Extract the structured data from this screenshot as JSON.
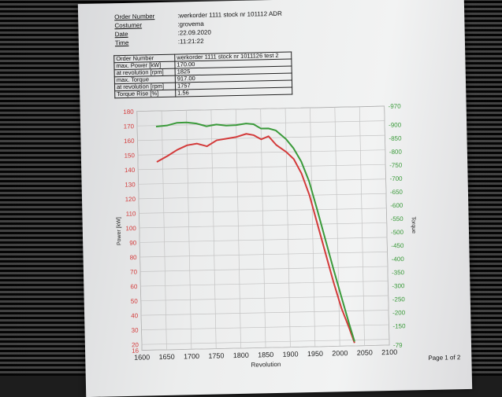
{
  "header": {
    "rows": [
      {
        "label": "Order Number",
        "value": ":werkorder 1111 stock nr 101112  ADR"
      },
      {
        "label": "Costumer",
        "value": ":grovema"
      },
      {
        "label": "Date",
        "value": ":22.09.2020"
      },
      {
        "label": "Time",
        "value": ":11:21:22"
      }
    ]
  },
  "results_table": [
    {
      "label": "Order Number",
      "value": "werkorder 1111 stock nr 1011126  test 2"
    },
    {
      "label": "max. Power [kW]",
      "value": "170.00"
    },
    {
      "label": "at revolution [rpm]",
      "value": "1825"
    },
    {
      "label": "max. Torque",
      "value": "917.00"
    },
    {
      "label": "at revolution [rpm]",
      "value": "1757"
    },
    {
      "label": "Torque Rise [%]",
      "value": "1.56"
    }
  ],
  "footer": "Page 1 of 2",
  "chart_data": {
    "type": "line",
    "xlabel": "Revolution",
    "ylabel_left": "Power [kW]",
    "ylabel_right": "Torque",
    "xlim": [
      1600,
      2100
    ],
    "ylim_left": [
      16,
      180
    ],
    "ylim_right": [
      79,
      970
    ],
    "x_ticks": [
      1600,
      1650,
      1700,
      1750,
      1800,
      1850,
      1900,
      1950,
      2000,
      2050,
      2100
    ],
    "y_ticks_left": [
      16,
      20,
      30,
      40,
      50,
      60,
      70,
      80,
      90,
      100,
      110,
      120,
      130,
      140,
      150,
      160,
      170,
      180
    ],
    "y_ticks_right": [
      79,
      150,
      200,
      250,
      300,
      350,
      400,
      450,
      500,
      550,
      600,
      650,
      700,
      750,
      800,
      850,
      900,
      970
    ],
    "y_tick_labels_right": [
      "-79",
      "-150",
      "-200",
      "-250",
      "-300",
      "-350",
      "-400",
      "-450",
      "-500",
      "-550",
      "-600",
      "-650",
      "-700",
      "-750",
      "-800",
      "-850",
      "-900",
      "-970"
    ],
    "grid": true,
    "colors": {
      "power": "#d33a3a",
      "torque": "#3a9a3a"
    },
    "series": [
      {
        "key": "power",
        "axis": "left",
        "x": [
          1638,
          1660,
          1680,
          1700,
          1720,
          1740,
          1760,
          1780,
          1800,
          1820,
          1835,
          1850,
          1865,
          1880,
          1900,
          1915,
          1930,
          1945,
          1960,
          1975,
          1990,
          2005,
          2020,
          2030
        ],
        "values": [
          145,
          149,
          153,
          156,
          157,
          155,
          159,
          160,
          161,
          163,
          162,
          159,
          161,
          155,
          150,
          145,
          135,
          120,
          100,
          80,
          60,
          42,
          28,
          18
        ]
      },
      {
        "key": "torque",
        "axis": "right",
        "x": [
          1638,
          1660,
          1680,
          1700,
          1720,
          1740,
          1760,
          1780,
          1800,
          1820,
          1835,
          1850,
          1865,
          1880,
          1900,
          1915,
          1930,
          1945,
          1960,
          1975,
          1990,
          2005,
          2020,
          2030
        ],
        "values": [
          912,
          915,
          924,
          925,
          920,
          909,
          915,
          910,
          911,
          916,
          913,
          896,
          896,
          888,
          855,
          820,
          770,
          695,
          590,
          480,
          370,
          265,
          160,
          95
        ]
      }
    ]
  }
}
